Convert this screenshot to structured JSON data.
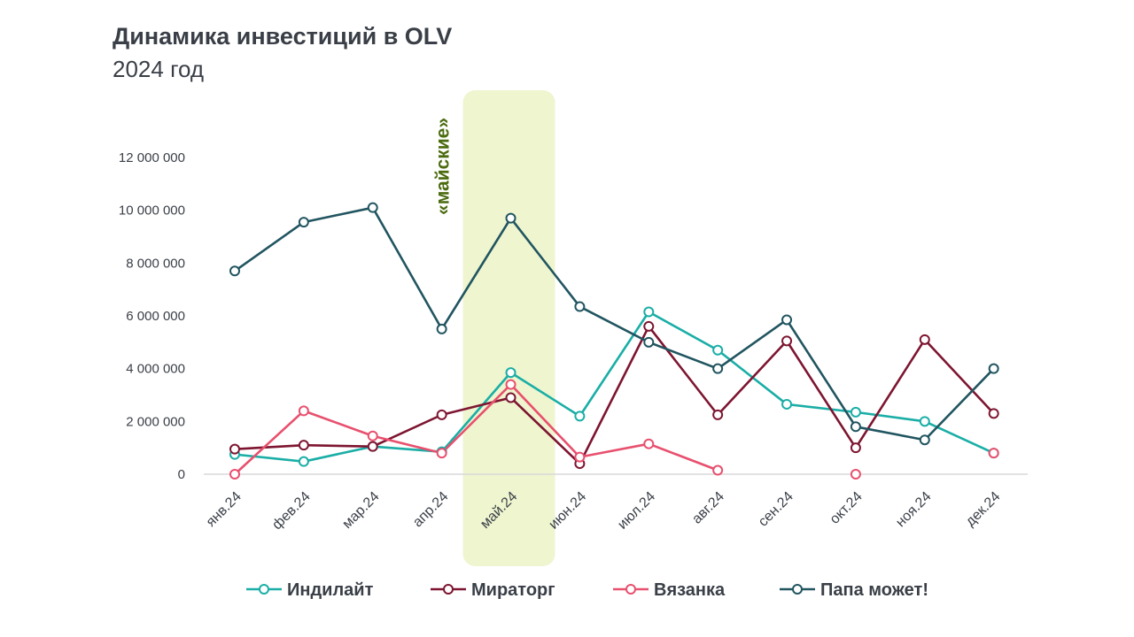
{
  "header": {
    "title": "Динамика инвестиций в OLV",
    "subtitle": "2024 год"
  },
  "chart_data": {
    "type": "line",
    "title": "Динамика инвестиций в OLV",
    "subtitle": "2024 год",
    "xlabel": "",
    "ylabel": "",
    "ylim": [
      0,
      12000000
    ],
    "yticks": [
      0,
      2000000,
      4000000,
      6000000,
      8000000,
      10000000,
      12000000
    ],
    "ytick_labels": [
      "0",
      "2 000 000",
      "4 000 000",
      "6 000 000",
      "8 000 000",
      "10 000 000",
      "12 000 000"
    ],
    "categories": [
      "янв.24",
      "фев.24",
      "мар.24",
      "апр.24",
      "май.24",
      "июн.24",
      "июл.24",
      "авг.24",
      "сен.24",
      "окт.24",
      "ноя.24",
      "дек.24"
    ],
    "grid": false,
    "legend_position": "bottom",
    "highlight": {
      "category": "май.24",
      "label": "«майские»",
      "color": "#eef5cf"
    },
    "series": [
      {
        "name": "Индилайт",
        "color": "#1aaea6",
        "values": [
          750000,
          480000,
          1050000,
          850000,
          3850000,
          2200000,
          6150000,
          4700000,
          2650000,
          2350000,
          2000000,
          800000
        ]
      },
      {
        "name": "Мираторг",
        "color": "#7d1530",
        "values": [
          950000,
          1100000,
          1050000,
          2250000,
          2900000,
          400000,
          5600000,
          2250000,
          5050000,
          1000000,
          5100000,
          2300000
        ]
      },
      {
        "name": "Вязанка",
        "color": "#e8506e",
        "values": [
          0,
          2400000,
          1450000,
          800000,
          3400000,
          650000,
          1150000,
          150000,
          null,
          0,
          null,
          800000
        ]
      },
      {
        "name": "Папа может!",
        "color": "#215560",
        "values": [
          7700000,
          9550000,
          10100000,
          5500000,
          9700000,
          6350000,
          5000000,
          4000000,
          5850000,
          1800000,
          1300000,
          4000000
        ]
      }
    ]
  }
}
